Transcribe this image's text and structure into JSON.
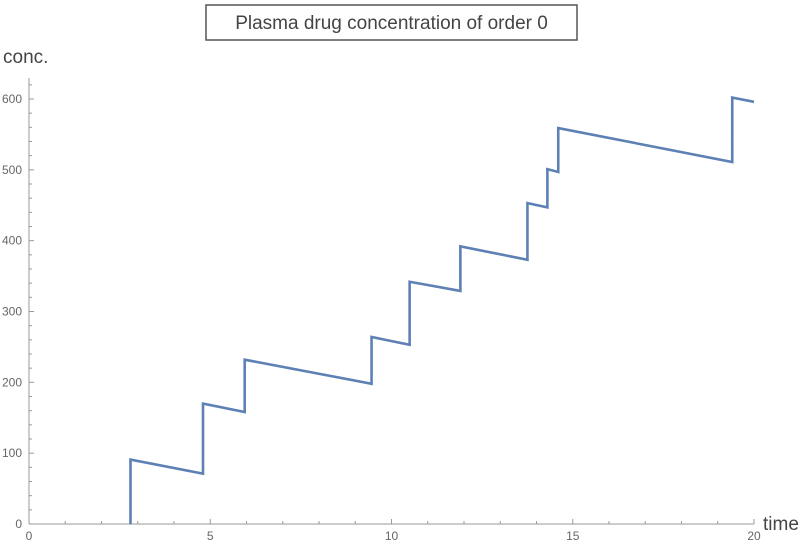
{
  "chart_data": {
    "type": "line",
    "title": "Plasma drug concentration of order 0",
    "xlabel": "time",
    "ylabel": "conc.",
    "xlim": [
      0,
      20
    ],
    "ylim": [
      0,
      620
    ],
    "x_ticks": [
      0,
      5,
      10,
      15,
      20
    ],
    "y_ticks": [
      0,
      100,
      200,
      300,
      400,
      500,
      600
    ],
    "grid": false,
    "legend": "none",
    "line_color": "#5E81B5",
    "series": [
      {
        "points": [
          [
            2.8,
            0
          ],
          [
            2.8,
            91
          ],
          [
            4.8,
            71
          ],
          [
            4.8,
            170
          ],
          [
            5.95,
            158
          ],
          [
            5.95,
            232
          ],
          [
            9.45,
            198
          ],
          [
            9.45,
            264
          ],
          [
            10.5,
            253
          ],
          [
            10.5,
            342
          ],
          [
            11.9,
            329
          ],
          [
            11.9,
            392
          ],
          [
            13.75,
            373
          ],
          [
            13.75,
            453
          ],
          [
            14.3,
            447
          ],
          [
            14.3,
            501
          ],
          [
            14.6,
            497
          ],
          [
            14.6,
            559
          ],
          [
            19.4,
            511
          ],
          [
            19.4,
            602
          ],
          [
            20,
            596
          ]
        ]
      }
    ]
  }
}
